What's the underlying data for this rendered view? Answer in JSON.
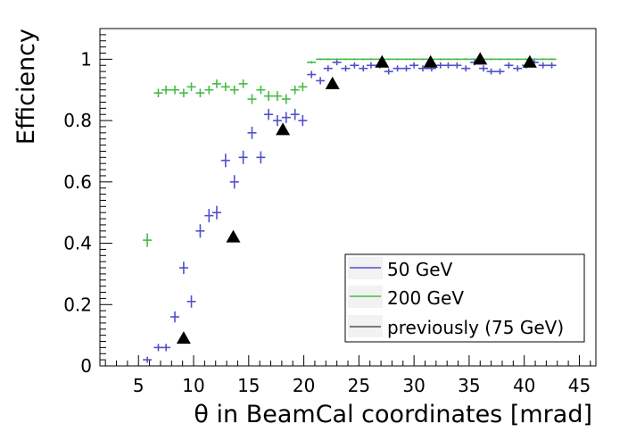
{
  "chart_data": {
    "type": "scatter",
    "title": "",
    "xlabel": "θ in BeamCal coordinates [mrad]",
    "ylabel": "Efficiency",
    "xlim": [
      1.5,
      46.5
    ],
    "ylim": [
      0,
      1.1
    ],
    "xticks": [
      5,
      10,
      15,
      20,
      25,
      30,
      35,
      40,
      45
    ],
    "yticks": [
      0,
      0.2,
      0.4,
      0.6,
      0.8,
      1
    ],
    "ytick_labels": [
      "0",
      "0.2",
      "0.4",
      "0.6",
      "0.8",
      "1"
    ],
    "series": [
      {
        "name": "50 GeV",
        "color": "#5050cc",
        "marker": "errorbar",
        "x": [
          5.8,
          6.8,
          7.5,
          8.3,
          9.1,
          9.8,
          10.6,
          11.4,
          12.1,
          12.9,
          13.7,
          14.5,
          15.3,
          16.1,
          16.8,
          17.6,
          18.4,
          19.2,
          19.9,
          20.7,
          21.5,
          22.2,
          23.0,
          23.8,
          24.6,
          25.4,
          26.1,
          26.9,
          27.7,
          28.5,
          29.3,
          30.0,
          30.8,
          31.6,
          32.4,
          33.1,
          33.9,
          34.7,
          35.5,
          36.3,
          37.0,
          37.8,
          38.6,
          39.4,
          40.2,
          40.9,
          41.7,
          42.5
        ],
        "y": [
          0.02,
          0.06,
          0.06,
          0.16,
          0.32,
          0.21,
          0.44,
          0.49,
          0.5,
          0.67,
          0.6,
          0.68,
          0.76,
          0.68,
          0.82,
          0.8,
          0.81,
          0.82,
          0.8,
          0.95,
          0.93,
          0.97,
          0.99,
          0.97,
          0.98,
          0.97,
          0.98,
          0.98,
          0.96,
          0.97,
          0.97,
          0.98,
          0.97,
          0.97,
          0.98,
          0.98,
          0.98,
          0.97,
          0.99,
          0.97,
          0.96,
          0.96,
          0.98,
          0.97,
          0.98,
          0.99,
          0.98,
          0.98
        ],
        "yerr": [
          0.01,
          0.012,
          0.012,
          0.018,
          0.02,
          0.02,
          0.022,
          0.022,
          0.022,
          0.022,
          0.022,
          0.022,
          0.02,
          0.02,
          0.018,
          0.018,
          0.018,
          0.018,
          0.018,
          0.012,
          0.012,
          0.01,
          0.01,
          0.01,
          0.01,
          0.01,
          0.01,
          0.01,
          0.01,
          0.01,
          0.01,
          0.01,
          0.01,
          0.01,
          0.01,
          0.01,
          0.01,
          0.01,
          0.01,
          0.01,
          0.01,
          0.01,
          0.01,
          0.01,
          0.01,
          0.01,
          0.01,
          0.01
        ]
      },
      {
        "name": "200 GeV",
        "color": "#44bb44",
        "marker": "errorbar",
        "x": [
          5.8,
          6.8,
          7.5,
          8.3,
          9.1,
          9.8,
          10.6,
          11.4,
          12.1,
          12.9,
          13.7,
          14.5,
          15.3,
          16.1,
          16.8,
          17.6,
          18.4,
          19.2,
          19.9,
          20.7,
          21.5,
          22.2,
          23.0,
          23.8,
          24.6,
          25.4,
          26.1,
          26.9,
          27.7,
          28.5,
          29.3,
          30.0,
          30.8,
          31.6,
          32.4,
          33.1,
          33.9,
          34.7,
          35.5,
          36.3,
          37.0,
          37.8,
          38.6,
          39.4,
          40.2,
          40.9,
          41.7,
          42.5
        ],
        "y": [
          0.41,
          0.89,
          0.9,
          0.9,
          0.89,
          0.91,
          0.89,
          0.9,
          0.92,
          0.91,
          0.9,
          0.92,
          0.87,
          0.9,
          0.88,
          0.88,
          0.87,
          0.9,
          0.91,
          0.99,
          1.0,
          1.0,
          1.0,
          1.0,
          1.0,
          1.0,
          1.0,
          1.0,
          1.0,
          1.0,
          1.0,
          1.0,
          1.0,
          1.0,
          1.0,
          1.0,
          1.0,
          1.0,
          1.0,
          1.0,
          1.0,
          1.0,
          1.0,
          1.0,
          1.0,
          1.0,
          1.0,
          1.0
        ],
        "yerr": [
          0.022,
          0.014,
          0.014,
          0.014,
          0.014,
          0.014,
          0.014,
          0.014,
          0.014,
          0.014,
          0.014,
          0.014,
          0.016,
          0.014,
          0.016,
          0.016,
          0.016,
          0.014,
          0.014,
          0.004,
          0.003,
          0.003,
          0.003,
          0.003,
          0.003,
          0.003,
          0.003,
          0.003,
          0.003,
          0.003,
          0.003,
          0.003,
          0.003,
          0.003,
          0.003,
          0.003,
          0.003,
          0.003,
          0.003,
          0.003,
          0.003,
          0.003,
          0.003,
          0.003,
          0.003,
          0.003,
          0.003,
          0.003
        ]
      },
      {
        "name": "previously (75 GeV)",
        "color": "#000000",
        "marker": "triangle",
        "x": [
          9.1,
          13.6,
          18.1,
          22.6,
          27.1,
          31.5,
          36.0,
          40.5
        ],
        "y": [
          0.09,
          0.42,
          0.77,
          0.92,
          0.99,
          0.99,
          1.0,
          0.99
        ]
      }
    ],
    "legend": {
      "placement": "bottom-right",
      "entries": [
        "50 GeV",
        "200 GeV",
        "previously (75 GeV)"
      ]
    }
  }
}
